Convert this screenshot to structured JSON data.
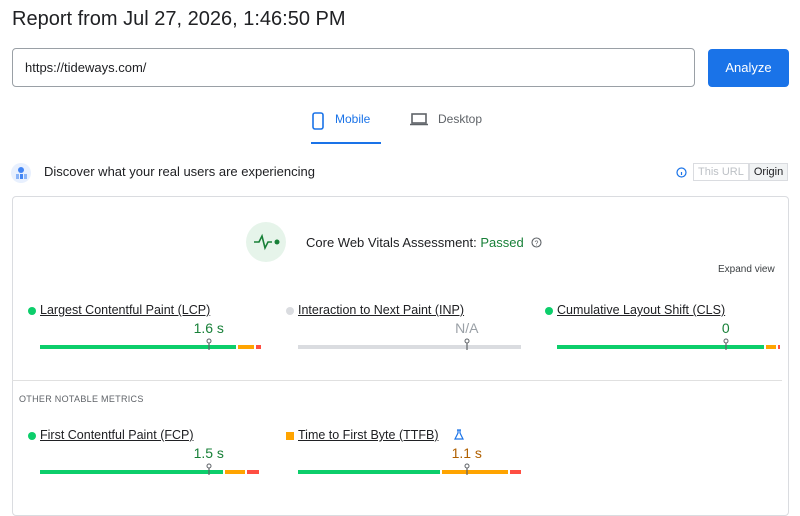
{
  "header": {
    "title": "Report from Jul 27, 2026, 1:46:50 PM"
  },
  "url_input": "https://tideways.com/",
  "analyze_button": "Analyze",
  "tabs": [
    "Mobile",
    "Desktop"
  ],
  "field_section": {
    "heading": "Discover what your real users are experiencing",
    "toggle": [
      "This URL",
      "Origin"
    ],
    "assessment_label": "Core Web Vitals Assessment:",
    "assessment_result": "Passed",
    "expand": "Expand view",
    "metrics": [
      {
        "name": "Largest Contentful Paint (LCP)",
        "value": "1.6 s",
        "status": "good",
        "distribution": [
          88,
          8,
          3
        ],
        "marker": 75
      },
      {
        "name": "Interaction to Next Paint (INP)",
        "value": "N/A",
        "status": "none",
        "distribution": [
          100,
          0,
          0
        ],
        "marker": 75
      },
      {
        "name": "Cumulative Layout Shift (CLS)",
        "value": "0",
        "status": "good",
        "distribution": [
          93,
          5,
          2
        ],
        "marker": 75
      }
    ],
    "other_heading": "OTHER NOTABLE METRICS",
    "other_metrics": [
      {
        "name": "First Contentful Paint (FCP)",
        "value": "1.5 s",
        "status": "good",
        "distribution": [
          82,
          10,
          6
        ],
        "marker": 75
      },
      {
        "name": "Time to First Byte (TTFB)",
        "value": "1.1 s",
        "status": "average",
        "experimental": true,
        "distribution": [
          64,
          30,
          6
        ],
        "marker": 75
      }
    ]
  }
}
